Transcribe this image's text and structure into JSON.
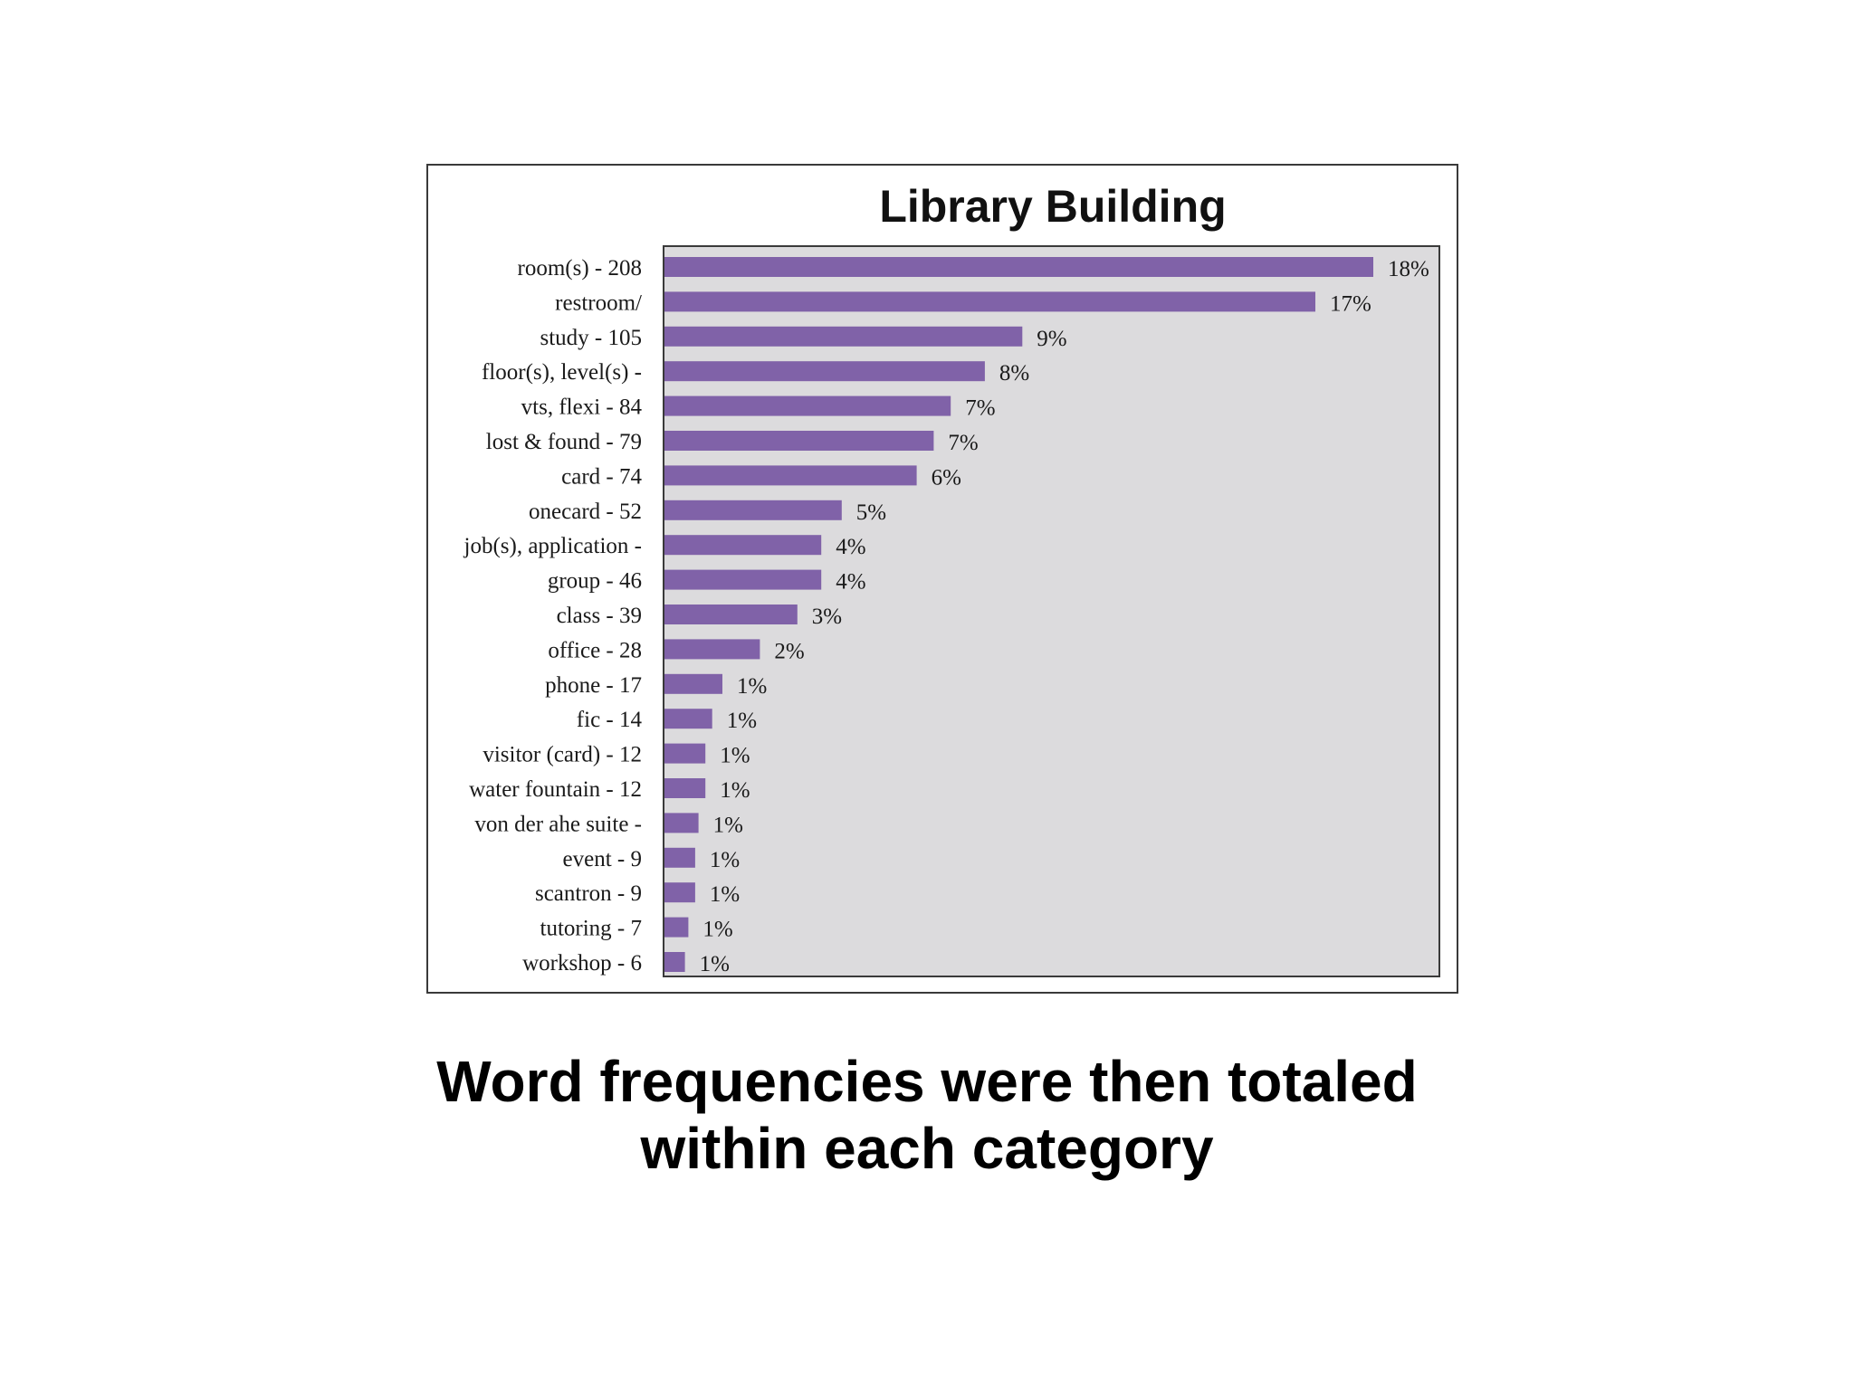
{
  "colors": {
    "bar": "#8062a8",
    "plot_background": "#dcdbdd",
    "frame": "#3a3a3a"
  },
  "caption": {
    "line1": "Word frequencies were then totaled",
    "line2": "within each category"
  },
  "chart_data": {
    "type": "bar",
    "orientation": "horizontal",
    "title": "Library Building",
    "xlabel": "",
    "ylabel": "",
    "xlim": [
      0,
      19
    ],
    "grid": false,
    "legend": "none",
    "categories": [
      "room(s) - 208",
      "restroom/",
      "study - 105",
      "floor(s), level(s) -",
      "vts, flexi - 84",
      "lost & found - 79",
      "card - 74",
      "onecard - 52",
      "job(s), application -",
      "group - 46",
      "class - 39",
      "office - 28",
      "phone - 17",
      "fic - 14",
      "visitor (card) - 12",
      "water fountain - 12",
      "von der ahe suite -",
      "event - 9",
      "scantron - 9",
      "tutoring - 7",
      "workshop - 6"
    ],
    "values": [
      18,
      17,
      9,
      8,
      7,
      7,
      6,
      5,
      4,
      4,
      3,
      2,
      1,
      1,
      1,
      1,
      1,
      1,
      1,
      1,
      1
    ],
    "bar_values": [
      208,
      191,
      105,
      94,
      84,
      79,
      74,
      52,
      46,
      46,
      39,
      28,
      17,
      14,
      12,
      12,
      10,
      9,
      9,
      7,
      6
    ],
    "data_labels": [
      "18%",
      "17%",
      "9%",
      "8%",
      "7%",
      "7%",
      "6%",
      "5%",
      "4%",
      "4%",
      "3%",
      "2%",
      "1%",
      "1%",
      "1%",
      "1%",
      "1%",
      "1%",
      "1%",
      "1%",
      "1%"
    ]
  }
}
